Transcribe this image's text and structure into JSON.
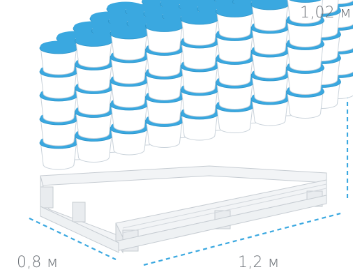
{
  "dimensions": {
    "height": "1,02 м",
    "length": "1,2 м",
    "width": "0,8 м"
  },
  "colors": {
    "accent": "#3aa8e0",
    "bucket_body": "#ffffff",
    "bucket_outline": "#c9d2da",
    "pallet": "#f2f4f6",
    "pallet_outline": "#c6ccd2",
    "dashed_line": "#3aa8e0"
  },
  "stack": {
    "columns": 8,
    "rows": 5,
    "levels": 5,
    "object": "bucket-with-blue-lid"
  }
}
